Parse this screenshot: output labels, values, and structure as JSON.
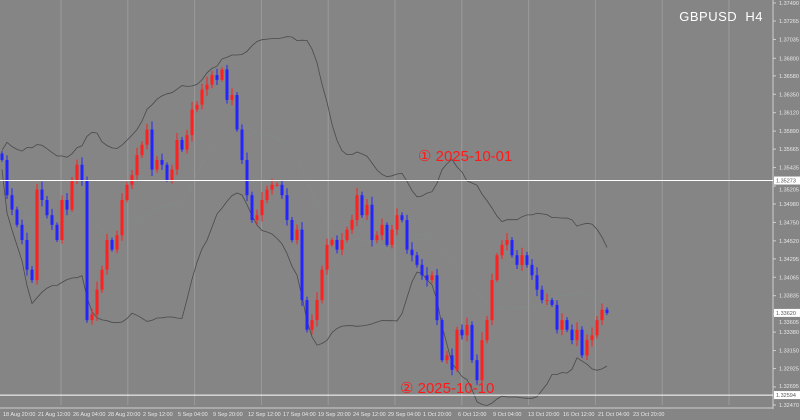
{
  "chart_data": {
    "type": "candlestick",
    "symbol": "GBPUSD",
    "timeframe": "H4",
    "colors": {
      "background": "#858585",
      "up": "#ff2020",
      "down": "#2424ff",
      "bands": "#4a4a4a",
      "grid": "#9a9a9a",
      "hline": "#ffffff",
      "annotation": "#ff1a1a"
    },
    "ylim": [
      1.3247,
      1.3749
    ],
    "y_ticks": [
      "1.37490",
      "1.37265",
      "1.37035",
      "1.36800",
      "1.36580",
      "1.36350",
      "1.36120",
      "1.35890",
      "1.35665",
      "1.35435",
      "1.35205",
      "1.34980",
      "1.34750",
      "1.34520",
      "1.34295",
      "1.34065",
      "1.33835",
      "1.33605",
      "1.33380",
      "1.33150",
      "1.32925",
      "1.32695",
      "1.32470"
    ],
    "x_ticks": [
      "18 Aug 20:00",
      "21 Aug 12:00",
      "26 Aug 04:00",
      "28 Aug 20:00",
      "2 Sep 12:00",
      "5 Sep 04:00",
      "9 Sep 20:00",
      "12 Sep 12:00",
      "17 Sep 04:00",
      "19 Sep 20:00",
      "24 Sep 12:00",
      "29 Sep 04:00",
      "1 Oct 20:00",
      "6 Oct 12:00",
      "9 Oct 04:00",
      "13 Oct 20:00",
      "16 Oct 12:00",
      "21 Oct 04:00",
      "23 Oct 20:00"
    ],
    "closes": [
      1.3553,
      1.3509,
      1.3491,
      1.3472,
      1.3453,
      1.3416,
      1.3403,
      1.3516,
      1.3503,
      1.3484,
      1.3472,
      1.3453,
      1.3503,
      1.3491,
      1.3528,
      1.3547,
      1.3528,
      1.3353,
      1.336,
      1.3391,
      1.3416,
      1.3453,
      1.3441,
      1.3459,
      1.3503,
      1.3522,
      1.3534,
      1.3559,
      1.3572,
      1.3591,
      1.3541,
      1.3553,
      1.3547,
      1.3528,
      1.3541,
      1.3578,
      1.3566,
      1.3584,
      1.3616,
      1.3622,
      1.3641,
      1.3647,
      1.3659,
      1.3653,
      1.3666,
      1.3628,
      1.3634,
      1.3591,
      1.3553,
      1.3509,
      1.3478,
      1.3484,
      1.3503,
      1.3516,
      1.3522,
      1.3522,
      1.3509,
      1.3478,
      1.3453,
      1.3466,
      1.3378,
      1.3341,
      1.3353,
      1.3378,
      1.3416,
      1.3447,
      1.3453,
      1.3441,
      1.3453,
      1.3466,
      1.3478,
      1.3509,
      1.3484,
      1.3497,
      1.3453,
      1.3459,
      1.3472,
      1.3447,
      1.3466,
      1.3484,
      1.3478,
      1.3441,
      1.3434,
      1.3422,
      1.3409,
      1.3403,
      1.3409,
      1.3353,
      1.3303,
      1.3309,
      1.3291,
      1.3341,
      1.3334,
      1.3347,
      1.3303,
      1.3278,
      1.3328,
      1.3353,
      1.3403,
      1.3434,
      1.3447,
      1.3453,
      1.3434,
      1.3422,
      1.3434,
      1.3422,
      1.3409,
      1.3391,
      1.3378,
      1.3378,
      1.3372,
      1.3341,
      1.3353,
      1.3341,
      1.3328,
      1.3341,
      1.3309,
      1.3328,
      1.3334,
      1.3353,
      1.3366,
      1.3362
    ],
    "indicator": {
      "type": "bollinger",
      "period": 20,
      "deviation": 2
    },
    "horizontal_lines": [
      {
        "price": 1.35273,
        "label": "1.35273",
        "annotation": "① 2025-10-01"
      },
      {
        "price": 1.32594,
        "label": "1.32594",
        "annotation": "② 2025-10-10"
      }
    ],
    "current_price": {
      "price": 1.3362,
      "label": "1.33620"
    }
  }
}
